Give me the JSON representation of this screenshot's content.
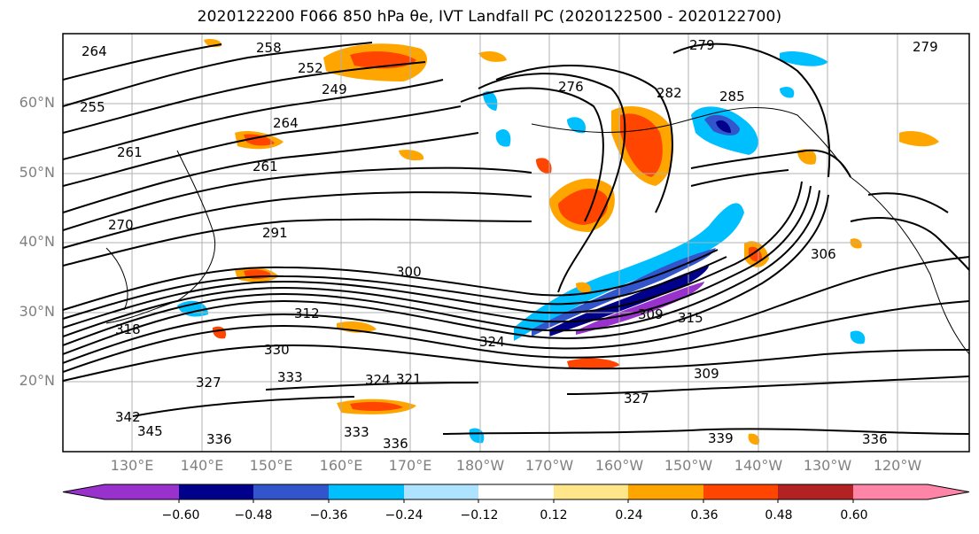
{
  "title": "2020122200 F066 850 hPa θe, IVT Landfall PC (2020122500 - 2020122700)",
  "lat_labels": [
    "60°N",
    "50°N",
    "40°N",
    "30°N",
    "20°N"
  ],
  "lon_labels": [
    "130°E",
    "140°E",
    "150°E",
    "160°E",
    "170°E",
    "180°W",
    "170°W",
    "160°W",
    "150°W",
    "140°W",
    "130°W",
    "120°W"
  ],
  "contour_labels": [
    "264",
    "258",
    "252",
    "249",
    "255",
    "261",
    "264",
    "261",
    "270",
    "279",
    "276",
    "279",
    "282",
    "285",
    "291",
    "300",
    "306",
    "312",
    "318",
    "324",
    "309",
    "315",
    "330",
    "333",
    "324",
    "327",
    "336",
    "342",
    "345",
    "333",
    "336",
    "339",
    "336",
    "309",
    "327",
    "321"
  ],
  "colorbar": {
    "ticks": [
      "−0.60",
      "−0.48",
      "−0.36",
      "−0.24",
      "−0.12",
      "0.12",
      "0.24",
      "0.36",
      "0.48",
      "0.60"
    ],
    "colors": [
      "#9932CC",
      "#00008B",
      "#3355CC",
      "#00BFFF",
      "#AEE3FF",
      "#FFFFFF",
      "#FFE68A",
      "#FFA500",
      "#FF4500",
      "#B22222",
      "#FF85A8"
    ]
  }
}
